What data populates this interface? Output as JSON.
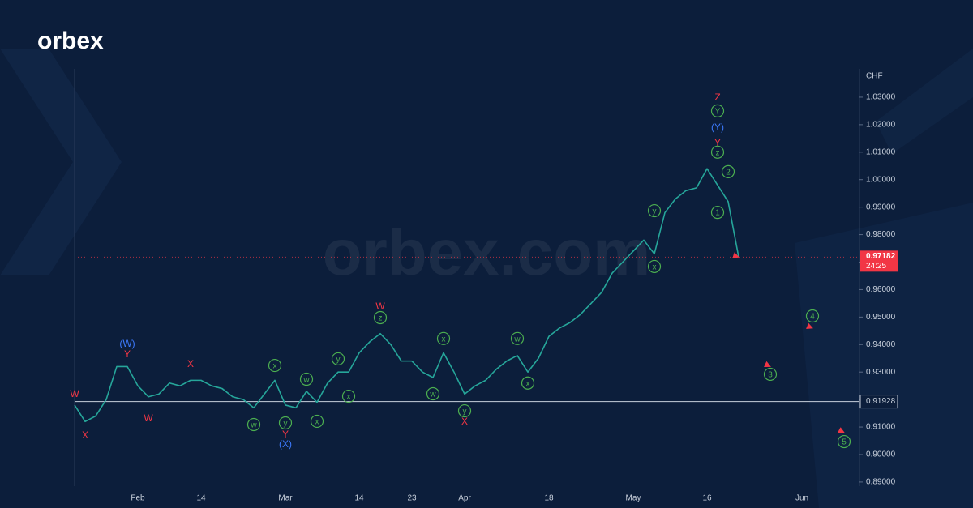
{
  "chart_data": {
    "type": "line",
    "brand": "orbex",
    "watermark": "orbex.com",
    "ylabel": "CHF",
    "categories": [
      null,
      null,
      null,
      null,
      null,
      null,
      "Feb",
      null,
      null,
      null,
      null,
      null,
      "14",
      null,
      null,
      null,
      null,
      null,
      null,
      null,
      "Mar",
      null,
      null,
      null,
      null,
      null,
      null,
      "14",
      null,
      null,
      null,
      null,
      "23",
      null,
      null,
      null,
      null,
      "Apr",
      null,
      null,
      null,
      null,
      null,
      null,
      null,
      "18",
      null,
      null,
      null,
      null,
      null,
      null,
      null,
      "May",
      null,
      null,
      null,
      null,
      null,
      null,
      "16",
      null,
      null,
      null,
      null,
      null,
      null,
      null,
      null,
      "Jun",
      null,
      null,
      null,
      null
    ],
    "series": [
      {
        "color": "#26a69a",
        "values": [
          0.918,
          0.912,
          0.914,
          0.92,
          0.932,
          0.932,
          0.925,
          0.921,
          0.922,
          0.926,
          0.925,
          0.927,
          0.927,
          0.925,
          0.924,
          0.921,
          0.92,
          0.917,
          0.922,
          0.927,
          0.918,
          0.917,
          0.923,
          0.919,
          0.926,
          0.93,
          0.93,
          0.937,
          0.941,
          0.944,
          0.94,
          0.934,
          0.934,
          0.93,
          0.928,
          0.937,
          0.93,
          0.922,
          0.925,
          0.927,
          0.931,
          0.934,
          0.936,
          0.93,
          0.935,
          0.943,
          0.946,
          0.948,
          0.951,
          0.955,
          0.959,
          0.966,
          0.97,
          0.974,
          0.978,
          0.973,
          0.988,
          0.993,
          0.996,
          0.997,
          1.004,
          0.998,
          0.992,
          0.97182,
          null,
          null,
          null,
          null,
          null,
          null,
          null,
          null,
          null,
          null
        ]
      },
      {
        "color": "#f23645",
        "values": [
          null,
          null,
          null,
          null,
          null,
          null,
          null,
          null,
          null,
          null,
          null,
          null,
          null,
          null,
          null,
          null,
          null,
          null,
          null,
          null,
          null,
          null,
          null,
          null,
          null,
          null,
          null,
          null,
          null,
          null,
          null,
          null,
          null,
          null,
          null,
          null,
          null,
          null,
          null,
          null,
          null,
          null,
          null,
          null,
          null,
          null,
          null,
          null,
          null,
          null,
          null,
          null,
          null,
          null,
          null,
          null,
          null,
          null,
          null,
          null,
          null,
          null,
          null,
          0.97182,
          null,
          null,
          0.932,
          null,
          null,
          null,
          0.946,
          null,
          null,
          0.908
        ]
      }
    ],
    "ylim": [
      0.8885,
      1.0403
    ],
    "yticks": [
      {
        "value": 0.89,
        "label": "0.89000"
      },
      {
        "value": 0.9,
        "label": "0.90000"
      },
      {
        "value": 0.91,
        "label": "0.91000"
      },
      {
        "value": 0.92,
        "label": "0.92000"
      },
      {
        "value": 0.93,
        "label": "0.93000"
      },
      {
        "value": 0.94,
        "label": "0.94000"
      },
      {
        "value": 0.95,
        "label": "0.95000"
      },
      {
        "value": 0.96,
        "label": "0.96000"
      },
      {
        "value": 0.97,
        "label": "0.97000"
      },
      {
        "value": 0.98,
        "label": "0.98000"
      },
      {
        "value": 0.99,
        "label": "0.99000"
      },
      {
        "value": 1.0,
        "label": "1.00000"
      },
      {
        "value": 1.01,
        "label": "1.01000"
      },
      {
        "value": 1.02,
        "label": "1.02000"
      },
      {
        "value": 1.03,
        "label": "1.03000"
      }
    ],
    "price_marker": {
      "value": 0.97182,
      "label": "0.97182",
      "countdown": "24:25",
      "color": "#f23645"
    },
    "level": {
      "value": 0.91928,
      "label": "0.91928"
    },
    "annotations": [
      {
        "text": "W",
        "at": 0,
        "y": 0.9221,
        "color": "#f23645",
        "circled": false
      },
      {
        "text": "X",
        "at": 1,
        "y": 0.9071,
        "color": "#f23645",
        "circled": false
      },
      {
        "text": "Y",
        "at": 5,
        "y": 0.9366,
        "color": "#f23645",
        "circled": false
      },
      {
        "text": "(W)",
        "at": 5,
        "y": 0.9404,
        "color": "#3d7bff",
        "circled": false
      },
      {
        "text": "W",
        "at": 7,
        "y": 0.9133,
        "color": "#f23645",
        "circled": false
      },
      {
        "text": "X",
        "at": 11,
        "y": 0.933,
        "color": "#f23645",
        "circled": false
      },
      {
        "text": "w",
        "at": 17,
        "y": 0.9109,
        "color": "#4caf50",
        "circled": true
      },
      {
        "text": "x",
        "at": 19,
        "y": 0.9324,
        "color": "#4caf50",
        "circled": true
      },
      {
        "text": "y",
        "at": 20,
        "y": 0.9115,
        "color": "#4caf50",
        "circled": true
      },
      {
        "text": "Y",
        "at": 20,
        "y": 0.9074,
        "color": "#f23645",
        "circled": false
      },
      {
        "text": "(X)",
        "at": 20,
        "y": 0.9039,
        "color": "#3d7bff",
        "circled": false
      },
      {
        "text": "w",
        "at": 22,
        "y": 0.9274,
        "color": "#4caf50",
        "circled": true
      },
      {
        "text": "x",
        "at": 23,
        "y": 0.9121,
        "color": "#4caf50",
        "circled": true
      },
      {
        "text": "y",
        "at": 25,
        "y": 0.9348,
        "color": "#4caf50",
        "circled": true
      },
      {
        "text": "x",
        "at": 26,
        "y": 0.9212,
        "color": "#4caf50",
        "circled": true
      },
      {
        "text": "W",
        "at": 29,
        "y": 0.954,
        "color": "#f23645",
        "circled": false
      },
      {
        "text": "z",
        "at": 29,
        "y": 0.9498,
        "color": "#4caf50",
        "circled": true
      },
      {
        "text": "x",
        "at": 35,
        "y": 0.9422,
        "color": "#4caf50",
        "circled": true
      },
      {
        "text": "w",
        "at": 34,
        "y": 0.9221,
        "color": "#4caf50",
        "circled": true
      },
      {
        "text": "y",
        "at": 37,
        "y": 0.9159,
        "color": "#4caf50",
        "circled": true
      },
      {
        "text": "X",
        "at": 37,
        "y": 0.9121,
        "color": "#f23645",
        "circled": false
      },
      {
        "text": "w",
        "at": 42,
        "y": 0.9422,
        "color": "#4caf50",
        "circled": true
      },
      {
        "text": "x",
        "at": 43,
        "y": 0.926,
        "color": "#4caf50",
        "circled": true
      },
      {
        "text": "y",
        "at": 55,
        "y": 0.9887,
        "color": "#4caf50",
        "circled": true
      },
      {
        "text": "x",
        "at": 55,
        "y": 0.9684,
        "color": "#4caf50",
        "circled": true
      },
      {
        "text": "Z",
        "at": 61,
        "y": 1.03,
        "color": "#f23645",
        "circled": false
      },
      {
        "text": "Y",
        "at": 61,
        "y": 1.025,
        "color": "#4caf50",
        "circled": true
      },
      {
        "text": "(Y)",
        "at": 61,
        "y": 1.0191,
        "color": "#3d7bff",
        "circled": false
      },
      {
        "text": "Y",
        "at": 61,
        "y": 1.0135,
        "color": "#f23645",
        "circled": false
      },
      {
        "text": "z",
        "at": 61,
        "y": 1.01,
        "color": "#4caf50",
        "circled": true
      },
      {
        "text": "2",
        "at": 62,
        "y": 1.0029,
        "color": "#4caf50",
        "circled": true
      },
      {
        "text": "1",
        "at": 61,
        "y": 0.9881,
        "color": "#4caf50",
        "circled": true
      },
      {
        "text": "3",
        "at": 66,
        "y": 0.9292,
        "color": "#4caf50",
        "circled": true
      },
      {
        "text": "4",
        "at": 70,
        "y": 0.9504,
        "color": "#4caf50",
        "circled": true
      },
      {
        "text": "5",
        "at": 73,
        "y": 0.9047,
        "color": "#4caf50",
        "circled": true
      }
    ]
  }
}
